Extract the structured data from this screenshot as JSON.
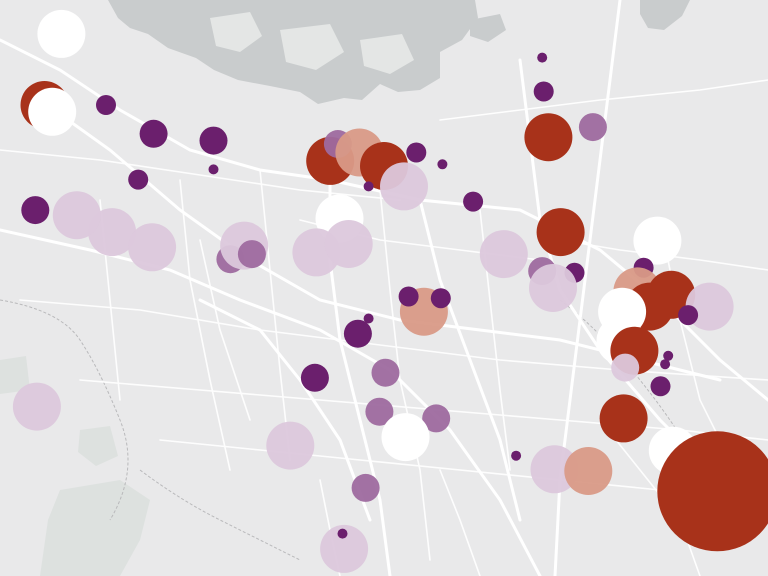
{
  "colors": {
    "background": "#e9e9ea",
    "water": "#c9cccd",
    "park": "#dde1df",
    "road": "#ffffff",
    "boundary": "#b9b9bb"
  },
  "legend_scale": {
    "classes": [
      "very-high",
      "high",
      "mid",
      "low",
      "very-low",
      "none"
    ],
    "class_colors": {
      "very-high": "#a8321a",
      "high": "#d99a87",
      "mid": "#9e6a9f",
      "low": "#6b1f6d",
      "very-low": "#dcc8dc",
      "none": "#ffffff"
    }
  },
  "markers": [
    {
      "id": "m01",
      "cls": "none",
      "lon": -122.16,
      "lat": 37.44,
      "size": "l"
    },
    {
      "id": "m02",
      "cls": "very-high",
      "lon": -122.171,
      "lat": 37.398,
      "size": "l"
    },
    {
      "id": "m03",
      "cls": "none",
      "lon": -122.166,
      "lat": 37.394,
      "size": "l"
    },
    {
      "id": "m04",
      "cls": "low",
      "lon": -122.131,
      "lat": 37.398,
      "size": "s"
    },
    {
      "id": "m05",
      "cls": "low",
      "lon": -122.1,
      "lat": 37.381,
      "size": "m"
    },
    {
      "id": "m06",
      "cls": "low",
      "lon": -122.061,
      "lat": 37.377,
      "size": "m"
    },
    {
      "id": "m07",
      "cls": "low",
      "lon": -122.11,
      "lat": 37.354,
      "size": "s"
    },
    {
      "id": "m08",
      "cls": "low",
      "lon": -122.061,
      "lat": 37.36,
      "size": "xs"
    },
    {
      "id": "m09",
      "cls": "low",
      "lon": -122.177,
      "lat": 37.336,
      "size": "m"
    },
    {
      "id": "m10",
      "cls": "very-low",
      "lon": -122.127,
      "lat": 37.323,
      "size": "l"
    },
    {
      "id": "m11",
      "cls": "mid",
      "lon": -122.05,
      "lat": 37.307,
      "size": "m"
    },
    {
      "id": "m12",
      "cls": "very-high",
      "lon": -121.985,
      "lat": 37.365,
      "size": "l"
    },
    {
      "id": "m13",
      "cls": "mid",
      "lon": -121.98,
      "lat": 37.375,
      "size": "m"
    },
    {
      "id": "m14",
      "cls": "high",
      "lon": -121.966,
      "lat": 37.37,
      "size": "l"
    },
    {
      "id": "m15",
      "cls": "very-high",
      "lon": -121.95,
      "lat": 37.362,
      "size": "l"
    },
    {
      "id": "m16",
      "cls": "low",
      "lon": -121.929,
      "lat": 37.37,
      "size": "s"
    },
    {
      "id": "m17",
      "cls": "low",
      "lon": -121.912,
      "lat": 37.363,
      "size": "xs"
    },
    {
      "id": "m18",
      "cls": "very-low",
      "lon": -121.937,
      "lat": 37.35,
      "size": "l"
    },
    {
      "id": "m19",
      "cls": "none",
      "lon": -121.979,
      "lat": 37.331,
      "size": "l"
    },
    {
      "id": "m20",
      "cls": "very-low",
      "lon": -121.994,
      "lat": 37.311,
      "size": "l"
    },
    {
      "id": "m21",
      "cls": "low",
      "lon": -121.96,
      "lat": 37.35,
      "size": "xs"
    },
    {
      "id": "m22",
      "cls": "very-high",
      "lon": -121.843,
      "lat": 37.379,
      "size": "l"
    },
    {
      "id": "m23",
      "cls": "low",
      "lon": -121.847,
      "lat": 37.426,
      "size": "xs"
    },
    {
      "id": "m24",
      "cls": "low",
      "lon": -121.846,
      "lat": 37.406,
      "size": "s"
    },
    {
      "id": "m25",
      "cls": "mid",
      "lon": -121.814,
      "lat": 37.385,
      "size": "m"
    },
    {
      "id": "m26",
      "cls": "low",
      "lon": -121.892,
      "lat": 37.341,
      "size": "s"
    },
    {
      "id": "m27",
      "cls": "very-high",
      "lon": -121.835,
      "lat": 37.323,
      "size": "l"
    },
    {
      "id": "m28",
      "cls": "very-low",
      "lon": -121.872,
      "lat": 37.31,
      "size": "l"
    },
    {
      "id": "m29",
      "cls": "mid",
      "lon": -121.847,
      "lat": 37.3,
      "size": "m"
    },
    {
      "id": "m30",
      "cls": "low",
      "lon": -121.826,
      "lat": 37.299,
      "size": "s"
    },
    {
      "id": "m31",
      "cls": "very-low",
      "lon": -121.84,
      "lat": 37.29,
      "size": "l"
    },
    {
      "id": "m32",
      "cls": "none",
      "lon": -121.772,
      "lat": 37.318,
      "size": "l"
    },
    {
      "id": "m33",
      "cls": "low",
      "lon": -121.781,
      "lat": 37.302,
      "size": "s"
    },
    {
      "id": "m34",
      "cls": "high",
      "lon": -121.785,
      "lat": 37.288,
      "size": "l"
    },
    {
      "id": "m35",
      "cls": "very-high",
      "lon": -121.777,
      "lat": 37.279,
      "size": "l"
    },
    {
      "id": "m36",
      "cls": "very-high",
      "lon": -121.763,
      "lat": 37.286,
      "size": "l"
    },
    {
      "id": "m37",
      "cls": "very-low",
      "lon": -121.738,
      "lat": 37.279,
      "size": "l"
    },
    {
      "id": "m38",
      "cls": "low",
      "lon": -121.752,
      "lat": 37.274,
      "size": "s"
    },
    {
      "id": "m39",
      "cls": "none",
      "lon": -121.795,
      "lat": 37.276,
      "size": "l"
    },
    {
      "id": "m40",
      "cls": "none",
      "lon": -121.796,
      "lat": 37.259,
      "size": "l"
    },
    {
      "id": "m41",
      "cls": "very-high",
      "lon": -121.787,
      "lat": 37.253,
      "size": "l"
    },
    {
      "id": "m42",
      "cls": "very-low",
      "lon": -121.793,
      "lat": 37.243,
      "size": "m"
    },
    {
      "id": "m43",
      "cls": "low",
      "lon": -121.765,
      "lat": 37.25,
      "size": "xs"
    },
    {
      "id": "m44",
      "cls": "low",
      "lon": -121.767,
      "lat": 37.245,
      "size": "xs"
    },
    {
      "id": "m45",
      "cls": "low",
      "lon": -121.77,
      "lat": 37.232,
      "size": "s"
    },
    {
      "id": "m46",
      "cls": "very-high",
      "lon": -121.794,
      "lat": 37.213,
      "size": "l"
    },
    {
      "id": "m47",
      "cls": "none",
      "lon": -121.762,
      "lat": 37.194,
      "size": "l"
    },
    {
      "id": "m48",
      "cls": "high",
      "lon": -121.755,
      "lat": 37.176,
      "size": "l"
    },
    {
      "id": "m49",
      "cls": "very-high",
      "lon": -121.733,
      "lat": 37.17,
      "size": "xl"
    },
    {
      "id": "m50",
      "cls": "very-low",
      "lon": -121.839,
      "lat": 37.183,
      "size": "l"
    },
    {
      "id": "m51",
      "cls": "high",
      "lon": -121.817,
      "lat": 37.182,
      "size": "l"
    },
    {
      "id": "m52",
      "cls": "very-low",
      "lon": -122.101,
      "lat": 37.314,
      "size": "l"
    },
    {
      "id": "m53",
      "cls": "very-low",
      "lon": -122.041,
      "lat": 37.315,
      "size": "l"
    },
    {
      "id": "m54",
      "cls": "very-low",
      "lon": -121.973,
      "lat": 37.316,
      "size": "l"
    },
    {
      "id": "m55",
      "cls": "mid",
      "lon": -122.036,
      "lat": 37.31,
      "size": "m"
    },
    {
      "id": "m56",
      "cls": "high",
      "lon": -121.924,
      "lat": 37.276,
      "size": "l"
    },
    {
      "id": "m57",
      "cls": "low",
      "lon": -121.934,
      "lat": 37.285,
      "size": "s"
    },
    {
      "id": "m58",
      "cls": "low",
      "lon": -121.913,
      "lat": 37.284,
      "size": "s"
    },
    {
      "id": "m59",
      "cls": "low",
      "lon": -121.967,
      "lat": 37.263,
      "size": "m"
    },
    {
      "id": "m60",
      "cls": "low",
      "lon": -121.96,
      "lat": 37.272,
      "size": "xs"
    },
    {
      "id": "m61",
      "cls": "low",
      "lon": -121.995,
      "lat": 37.237,
      "size": "m"
    },
    {
      "id": "m62",
      "cls": "mid",
      "lon": -121.949,
      "lat": 37.24,
      "size": "m"
    },
    {
      "id": "m63",
      "cls": "mid",
      "lon": -121.953,
      "lat": 37.217,
      "size": "m"
    },
    {
      "id": "m64",
      "cls": "mid",
      "lon": -121.916,
      "lat": 37.213,
      "size": "m"
    },
    {
      "id": "m65",
      "cls": "none",
      "lon": -121.936,
      "lat": 37.202,
      "size": "l"
    },
    {
      "id": "m66",
      "cls": "very-low",
      "lon": -122.011,
      "lat": 37.197,
      "size": "l"
    },
    {
      "id": "m67",
      "cls": "low",
      "lon": -121.864,
      "lat": 37.191,
      "size": "xs"
    },
    {
      "id": "m68",
      "cls": "mid",
      "lon": -121.962,
      "lat": 37.172,
      "size": "m"
    },
    {
      "id": "m69",
      "cls": "very-low",
      "lon": -121.976,
      "lat": 37.136,
      "size": "l"
    },
    {
      "id": "m70",
      "cls": "low",
      "lon": -121.977,
      "lat": 37.145,
      "size": "xs"
    },
    {
      "id": "m71",
      "cls": "very-low",
      "lon": -122.176,
      "lat": 37.22,
      "size": "l"
    },
    {
      "id": "m72",
      "cls": "very-low",
      "lon": -122.15,
      "lat": 37.333,
      "size": "l"
    }
  ]
}
